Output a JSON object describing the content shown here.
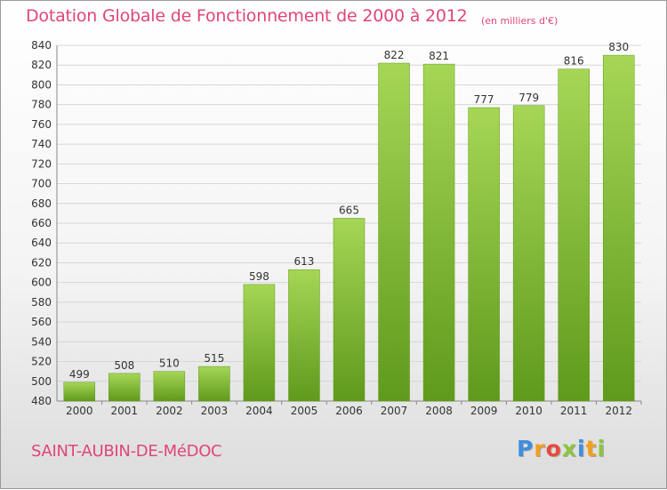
{
  "header": {
    "title": "Dotation Globale de Fonctionnement de 2000 à 2012",
    "subtitle": "(en milliers d'€)"
  },
  "footer": {
    "commune": "SAINT-AUBIN-DE-MéDOC",
    "logo_letters": [
      "P",
      "r",
      "o",
      "x",
      "i",
      "t",
      "i"
    ],
    "logo_colors": [
      "#3e8ede",
      "#f29e1f",
      "#e84b3c",
      "#8bc53f",
      "#3e8ede",
      "#f29e1f",
      "#8bc53f"
    ]
  },
  "chart_data": {
    "type": "bar",
    "title": "Dotation Globale de Fonctionnement de 2000 à 2012",
    "subtitle": "(en milliers d'€)",
    "categories": [
      "2000",
      "2001",
      "2002",
      "2003",
      "2004",
      "2005",
      "2006",
      "2007",
      "2008",
      "2009",
      "2010",
      "2011",
      "2012"
    ],
    "values": [
      499,
      508,
      510,
      515,
      598,
      613,
      665,
      822,
      821,
      777,
      779,
      816,
      830
    ],
    "ylim": [
      480,
      840
    ],
    "yticks": [
      480,
      500,
      520,
      540,
      560,
      580,
      600,
      620,
      640,
      660,
      680,
      700,
      720,
      740,
      760,
      780,
      800,
      820,
      840
    ],
    "grid": true,
    "bar_color": "#7ebf2e",
    "bar_color_light": "#a6d656",
    "bar_color_dark": "#5f9a1c"
  }
}
